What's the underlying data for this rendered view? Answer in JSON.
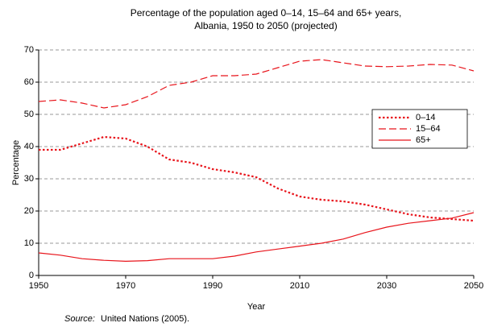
{
  "chart_data": {
    "type": "line",
    "title": [
      "Percentage of the population aged 0–14, 15–64 and 65+ years,",
      "Albania, 1950 to 2050 (projected)"
    ],
    "x_label": "Year",
    "y_label": "Percentage",
    "source_label": "Source:",
    "source": "United Nations (2005).",
    "x": [
      1950,
      1955,
      1960,
      1965,
      1970,
      1975,
      1980,
      1985,
      1990,
      1995,
      2000,
      2005,
      2010,
      2015,
      2020,
      2025,
      2030,
      2035,
      2040,
      2045,
      2050
    ],
    "series": [
      {
        "name": "0–14",
        "color": "#e8141b",
        "line_style": "dotted",
        "values": [
          39,
          39,
          41,
          43,
          42.5,
          40,
          36,
          35,
          33,
          32,
          30.5,
          27,
          24.5,
          23.5,
          23,
          22,
          20.5,
          19,
          18,
          17.5,
          17
        ]
      },
      {
        "name": "15–64",
        "color": "#e8141b",
        "line_style": "dashed",
        "values": [
          54,
          54.5,
          53.5,
          52,
          53,
          55.5,
          59,
          60,
          62,
          62,
          62.5,
          64.5,
          66.5,
          67,
          66,
          65,
          64.8,
          65,
          65.5,
          65.3,
          63.5
        ]
      },
      {
        "name": "65+",
        "color": "#e8141b",
        "line_style": "solid",
        "values": [
          7,
          6.3,
          5.2,
          4.7,
          4.4,
          4.6,
          5.2,
          5.2,
          5.2,
          6,
          7.3,
          8.2,
          9.1,
          10,
          11.3,
          13.3,
          15,
          16.2,
          17,
          17.8,
          19.5
        ]
      }
    ],
    "xlim": [
      1950,
      2050
    ],
    "xticks": [
      1950,
      1970,
      1990,
      2010,
      2030,
      2050
    ],
    "ylim": [
      0,
      70
    ],
    "yticks": [
      0,
      10,
      20,
      30,
      40,
      50,
      60,
      70
    ],
    "grid": true,
    "legend": "right"
  }
}
